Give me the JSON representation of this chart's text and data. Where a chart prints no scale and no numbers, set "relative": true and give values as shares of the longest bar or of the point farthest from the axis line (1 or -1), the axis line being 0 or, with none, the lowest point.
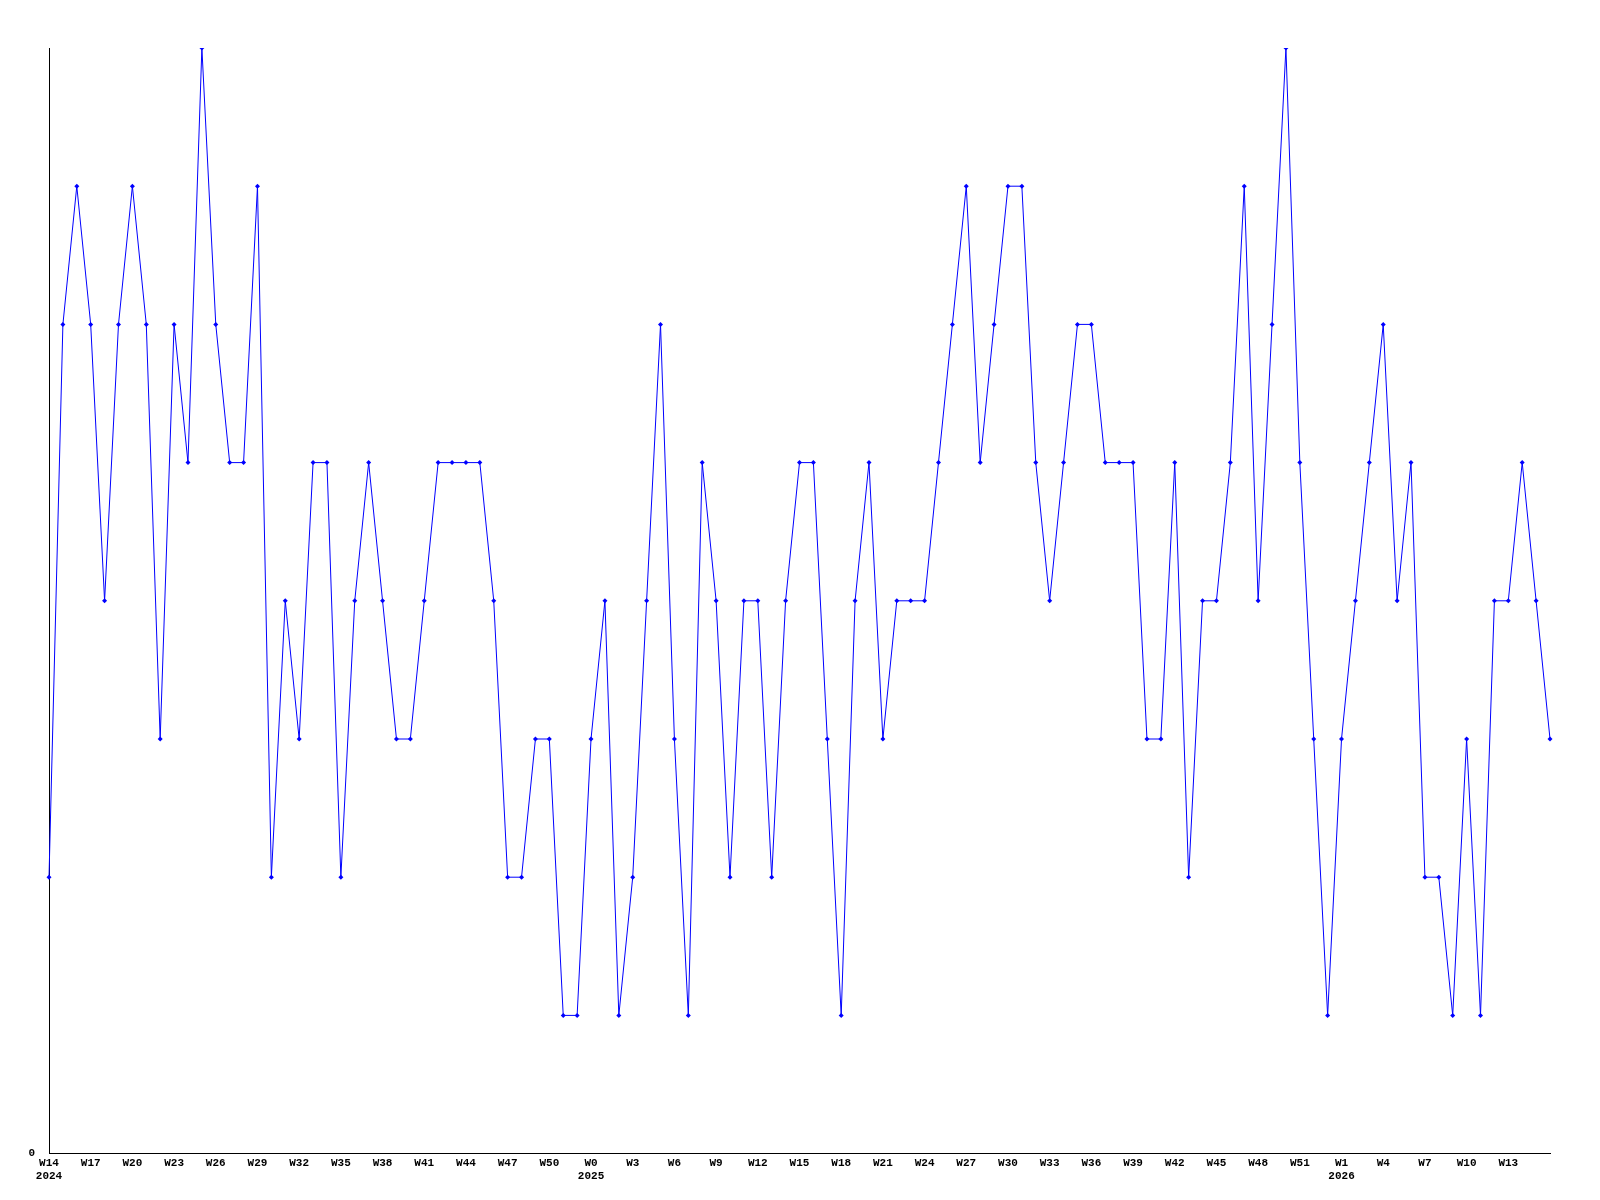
{
  "chart_data": {
    "type": "line",
    "relative": true,
    "marker": "diamond",
    "grid": false,
    "legend": false,
    "annotations": [
      "0"
    ],
    "categories": [
      "W14\n2024",
      null,
      null,
      "W17",
      null,
      null,
      "W20",
      null,
      null,
      "W23",
      null,
      null,
      "W26",
      null,
      null,
      "W29",
      null,
      null,
      "W32",
      null,
      null,
      "W35",
      null,
      null,
      "W38",
      null,
      null,
      "W41",
      null,
      null,
      "W44",
      null,
      null,
      "W47",
      null,
      null,
      "W50",
      null,
      null,
      "W0\n2025",
      null,
      null,
      "W3",
      null,
      null,
      "W6",
      null,
      null,
      "W9",
      null,
      null,
      "W12",
      null,
      null,
      "W15",
      null,
      null,
      "W18",
      null,
      null,
      "W21",
      null,
      null,
      "W24",
      null,
      null,
      "W27",
      null,
      null,
      "W30",
      null,
      null,
      "W33",
      null,
      null,
      "W36",
      null,
      null,
      "W39",
      null,
      null,
      "W42",
      null,
      null,
      "W45",
      null,
      null,
      "W48",
      null,
      null,
      "W51",
      null,
      null,
      "W1\n2026",
      null,
      null,
      "W4",
      null,
      null,
      "W7",
      null,
      null,
      "W10",
      null,
      null,
      "W13",
      null,
      null,
      null
    ],
    "series": [
      {
        "color": "#0000ff",
        "values": [
          0.25,
          0.75,
          0.875,
          0.75,
          0.5,
          0.75,
          0.875,
          0.75,
          0.375,
          0.75,
          0.625,
          1,
          0.75,
          0.625,
          0.625,
          0.875,
          0.25,
          0.5,
          0.375,
          0.625,
          0.625,
          0.25,
          0.5,
          0.625,
          0.5,
          0.375,
          0.375,
          0.5,
          0.625,
          0.625,
          0.625,
          0.625,
          0.5,
          0.25,
          0.25,
          0.375,
          0.375,
          0.125,
          0.125,
          0.375,
          0.5,
          0.125,
          0.25,
          0.5,
          0.75,
          0.375,
          0.125,
          0.625,
          0.5,
          0.25,
          0.5,
          0.5,
          0.25,
          0.5,
          0.625,
          0.625,
          0.375,
          0.125,
          0.5,
          0.625,
          0.375,
          0.5,
          0.5,
          0.5,
          0.625,
          0.75,
          0.875,
          0.625,
          0.75,
          0.875,
          0.875,
          0.625,
          0.5,
          0.625,
          0.75,
          0.75,
          0.625,
          0.625,
          0.625,
          0.375,
          0.375,
          0.625,
          0.25,
          0.5,
          0.5,
          0.625,
          0.875,
          0.5,
          0.75,
          1,
          0.625,
          0.375,
          0.125,
          0.375,
          0.5,
          0.625,
          0.75,
          0.5,
          0.625,
          0.25,
          0.25,
          0.125,
          0.375,
          0.125,
          0.5,
          0.5,
          0.625,
          0.5,
          0.375
        ]
      }
    ]
  }
}
